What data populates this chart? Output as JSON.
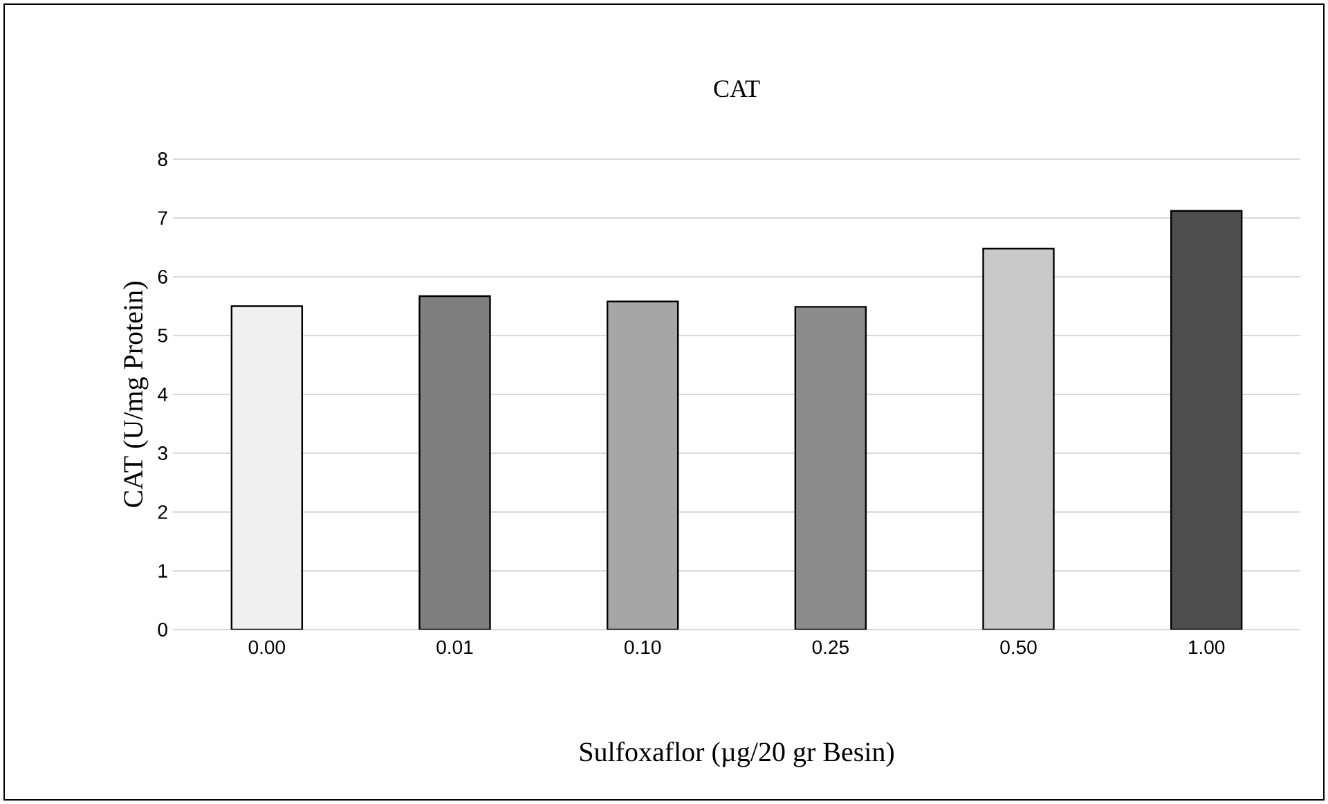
{
  "chart_data": {
    "type": "bar",
    "title": "CAT",
    "xlabel": "Sulfoxaflor (µg/20 gr Besin)",
    "ylabel": "CAT (U/mg Protein)",
    "categories": [
      "0.00",
      "0.01",
      "0.10",
      "0.25",
      "0.50",
      "1.00"
    ],
    "values": [
      5.5,
      5.67,
      5.58,
      5.49,
      6.48,
      7.12
    ],
    "colors": [
      "#f0f0f0",
      "#7f7f7f",
      "#a6a6a6",
      "#8c8c8c",
      "#c9c9c9",
      "#4d4d4d"
    ],
    "ylim": [
      0,
      8
    ],
    "yticks": [
      0,
      1,
      2,
      3,
      4,
      5,
      6,
      7,
      8
    ],
    "grid": "y"
  }
}
